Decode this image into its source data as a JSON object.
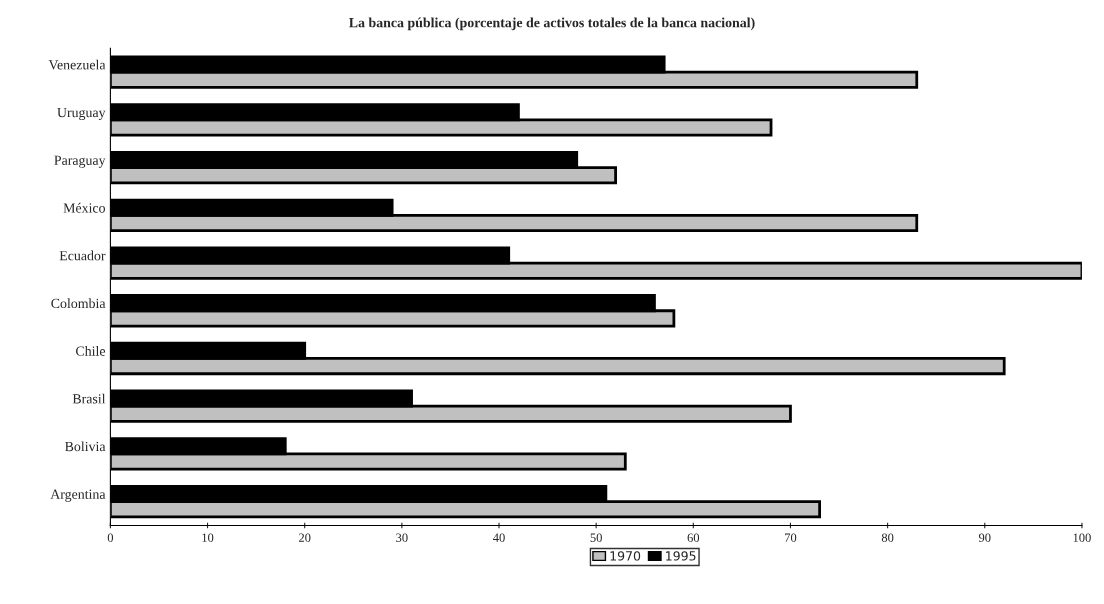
{
  "chart_data": {
    "type": "bar",
    "orientation": "horizontal",
    "title": "La banca pública (porcentaje de activos totales de la banca nacional)",
    "categories": [
      "Venezuela",
      "Uruguay",
      "Paraguay",
      "México",
      "Ecuador",
      "Colombia",
      "Chile",
      "Brasil",
      "Bolivia",
      "Argentina"
    ],
    "series": [
      {
        "name": "1970",
        "color": "#c0c0c0",
        "values": [
          83,
          68,
          52,
          83,
          100,
          58,
          92,
          70,
          53,
          73
        ]
      },
      {
        "name": "1995",
        "color": "#000000",
        "values": [
          57,
          42,
          48,
          29,
          41,
          56,
          20,
          31,
          18,
          51
        ]
      }
    ],
    "xlim": [
      0,
      100
    ],
    "xticks": [
      0,
      10,
      20,
      30,
      40,
      50,
      60,
      70,
      80,
      90,
      100
    ],
    "grid": false,
    "legend": "bottom"
  }
}
